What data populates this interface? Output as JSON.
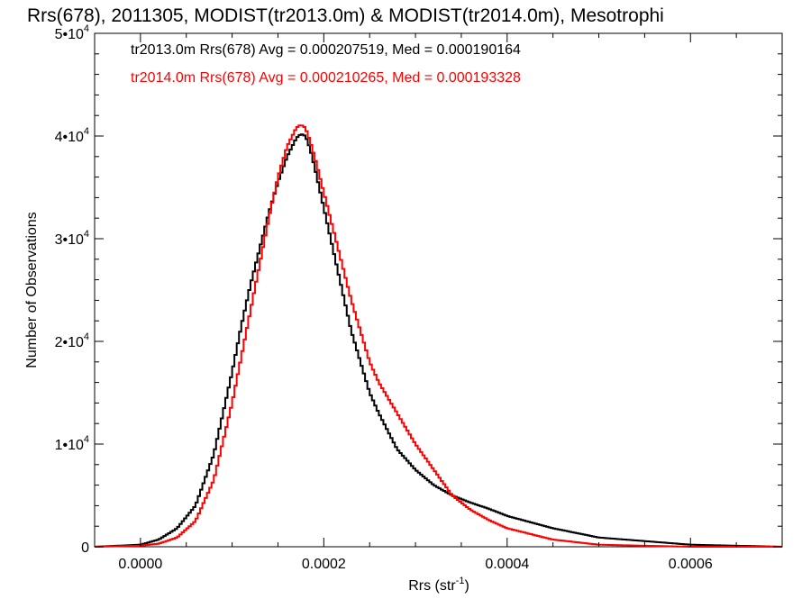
{
  "chart_data": {
    "type": "line",
    "title": "Rrs(678), 2011305, MODIST(tr2013.0m) & MODIST(tr2014.0m), Mesotrophi",
    "xlabel": "Rrs (str",
    "xlabel_sup": "-1",
    "xlabel_close": ")",
    "ylabel": "Number of Observations",
    "xlim": [
      -5e-05,
      0.0007
    ],
    "ylim": [
      0,
      50000
    ],
    "x_ticks": [
      {
        "value": 0.0,
        "label": "0.0000"
      },
      {
        "value": 0.0002,
        "label": "0.0002"
      },
      {
        "value": 0.0004,
        "label": "0.0004"
      },
      {
        "value": 0.0006,
        "label": "0.0006"
      }
    ],
    "y_ticks": [
      {
        "value": 0,
        "label": "0",
        "sup": ""
      },
      {
        "value": 10000,
        "label": "1•10",
        "sup": "4"
      },
      {
        "value": 20000,
        "label": "2•10",
        "sup": "4"
      },
      {
        "value": 30000,
        "label": "3•10",
        "sup": "4"
      },
      {
        "value": 40000,
        "label": "4•10",
        "sup": "4"
      },
      {
        "value": 50000,
        "label": "5•10",
        "sup": "4"
      }
    ],
    "annotations": [
      {
        "text": "tr2013.0m Rrs(678) Avg = 0.000207519, Med = 0.000190164",
        "color": "#000000"
      },
      {
        "text": "tr2014.0m Rrs(678) Avg = 0.000210265, Med = 0.000193328",
        "color": "#ff0000"
      }
    ],
    "series": [
      {
        "color": "#000000",
        "x": [
          -5e-05,
          0.0,
          2e-05,
          4e-05,
          6e-05,
          8e-05,
          0.0001,
          0.00011,
          0.00012,
          0.00013,
          0.00014,
          0.00015,
          0.00016,
          0.00017,
          0.000175,
          0.00018,
          0.000185,
          0.00019,
          0.0002,
          0.00021,
          0.00022,
          0.00023,
          0.00024,
          0.00025,
          0.00026,
          0.00028,
          0.0003,
          0.00032,
          0.00034,
          0.00036,
          0.00038,
          0.0004,
          0.00045,
          0.0005,
          0.0006,
          0.0007
        ],
        "y": [
          0,
          200,
          700,
          1800,
          4000,
          9000,
          17000,
          21500,
          25500,
          29000,
          32500,
          35500,
          38000,
          39800,
          40200,
          40000,
          38800,
          37000,
          33000,
          29000,
          25000,
          21000,
          18000,
          15000,
          13000,
          9500,
          7500,
          6000,
          5000,
          4300,
          3700,
          3000,
          1800,
          900,
          200,
          0
        ]
      },
      {
        "color": "#ff0000",
        "x": [
          -5e-05,
          0.0,
          2e-05,
          4e-05,
          6e-05,
          8e-05,
          0.0001,
          0.00011,
          0.00012,
          0.00013,
          0.00014,
          0.00015,
          0.00016,
          0.00017,
          0.000175,
          0.00018,
          0.000185,
          0.00019,
          0.0002,
          0.00021,
          0.00022,
          0.00023,
          0.00024,
          0.00025,
          0.00026,
          0.00028,
          0.0003,
          0.00032,
          0.00034,
          0.00036,
          0.00038,
          0.0004,
          0.00045,
          0.0005,
          0.0006,
          0.0007
        ],
        "y": [
          0,
          100,
          300,
          900,
          2500,
          6500,
          14000,
          18500,
          23000,
          27500,
          32000,
          36000,
          39000,
          40800,
          41100,
          40800,
          39500,
          38000,
          34500,
          31000,
          27500,
          24000,
          21000,
          18000,
          16000,
          13000,
          10000,
          7500,
          5000,
          3600,
          2600,
          1800,
          700,
          200,
          0,
          0
        ]
      }
    ]
  }
}
